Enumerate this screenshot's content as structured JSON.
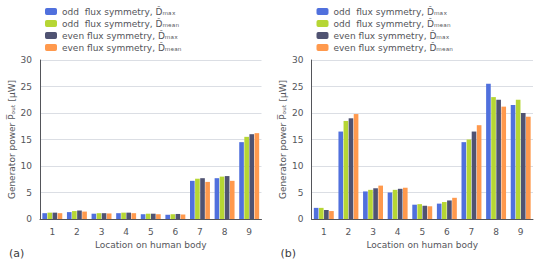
{
  "chart_data": [
    {
      "type": "bar",
      "title": "(a)",
      "xlabel": "Location on human body",
      "ylabel": "Generator power P̅ₒᵤₜ [μW]",
      "categories": [
        "1",
        "2",
        "3",
        "4",
        "5",
        "6",
        "7",
        "8",
        "9"
      ],
      "series": [
        {
          "name": "odd  flux symmetry, D̂ₘₐₓ",
          "values": [
            1.1,
            1.3,
            1.0,
            1.1,
            0.9,
            0.8,
            7.2,
            7.7,
            14.5
          ]
        },
        {
          "name": "odd  flux symmetry, D̂ₘₑₐₙ",
          "values": [
            1.2,
            1.5,
            1.1,
            1.2,
            1.0,
            0.9,
            7.6,
            8.0,
            15.5
          ]
        },
        {
          "name": "even flux symmetry, D̂ₘₐₓ",
          "values": [
            1.2,
            1.6,
            1.1,
            1.2,
            1.0,
            0.95,
            7.7,
            8.1,
            16.0
          ]
        },
        {
          "name": "even flux symmetry, D̂ₘₑₐₙ",
          "values": [
            1.1,
            1.4,
            1.05,
            1.1,
            0.9,
            0.85,
            7.0,
            7.2,
            16.2
          ]
        }
      ],
      "ylim": [
        0,
        30
      ],
      "yticks": [
        0,
        5,
        10,
        15,
        20,
        25,
        30
      ],
      "grid": true,
      "legend": "upper left"
    },
    {
      "type": "bar",
      "title": "(b)",
      "xlabel": "Location on human body",
      "ylabel": "Generator power P̅ₒᵤₜ [μW]",
      "categories": [
        "1",
        "2",
        "3",
        "4",
        "5",
        "6",
        "7",
        "8",
        "9"
      ],
      "series": [
        {
          "name": "odd  flux symmetry, D̂ₘₐₓ",
          "values": [
            2.1,
            16.5,
            5.2,
            5.0,
            2.7,
            2.9,
            14.5,
            25.5,
            21.5
          ]
        },
        {
          "name": "odd  flux symmetry, D̂ₘₑₐₙ",
          "values": [
            2.1,
            18.5,
            5.5,
            5.5,
            2.8,
            3.2,
            15.0,
            23.0,
            22.5
          ]
        },
        {
          "name": "even flux symmetry, D̂ₘₐₓ",
          "values": [
            1.7,
            19.0,
            5.8,
            5.7,
            2.5,
            3.5,
            16.5,
            22.5,
            20.0
          ]
        },
        {
          "name": "even flux symmetry, D̂ₘₑₐₙ",
          "values": [
            1.5,
            19.8,
            6.3,
            5.9,
            2.4,
            4.0,
            17.7,
            21.2,
            19.3
          ]
        }
      ],
      "ylim": [
        0,
        30
      ],
      "yticks": [
        0,
        5,
        10,
        15,
        20,
        25,
        30
      ],
      "grid": true,
      "legend": "upper left"
    }
  ]
}
